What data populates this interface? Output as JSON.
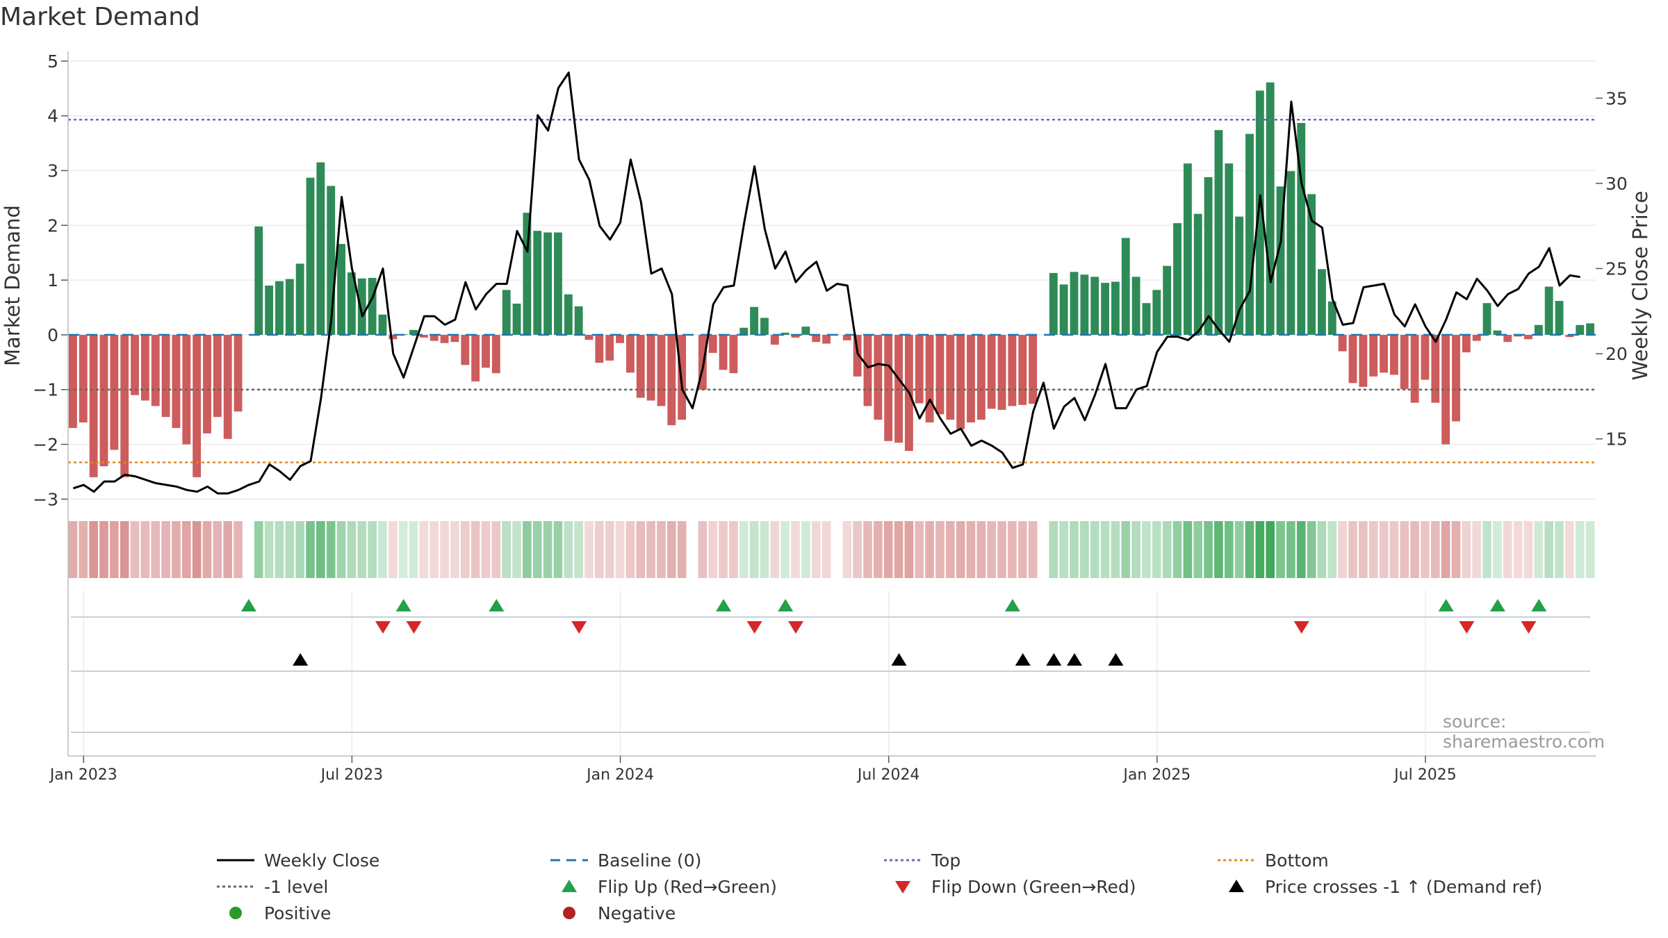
{
  "title": "Market Demand",
  "watermark": "source: sharemaestro.com",
  "chart_data": {
    "type": "bar+line",
    "title": "Market Demand",
    "ylabel_left": "Market Demand",
    "ylabel_right": "Weekly Close Price",
    "ylim_left": [
      -3.3,
      5.1
    ],
    "ylim_right": [
      10.5,
      37.5
    ],
    "yticks_left": [
      "5",
      "4",
      "3",
      "2",
      "1",
      "0",
      "−1",
      "−2",
      "−3"
    ],
    "yticks_right": [
      "35",
      "30",
      "25",
      "20",
      "15"
    ],
    "x_start_week_index": 0,
    "x_ticks": [
      {
        "label": "Jan 2023",
        "week": 1
      },
      {
        "label": "Jul 2023",
        "week": 27
      },
      {
        "label": "Jan 2024",
        "week": 53
      },
      {
        "label": "Jul 2024",
        "week": 79
      },
      {
        "label": "Jan 2025",
        "week": 105
      },
      {
        "label": "Jul 2025",
        "week": 131
      }
    ],
    "reference_lines": {
      "top": 3.93,
      "minus1": -1.0,
      "bottom": -2.33,
      "baseline": 0
    },
    "demand": [
      -1.7,
      -1.6,
      -2.6,
      -2.4,
      -2.1,
      -2.6,
      -1.1,
      -1.2,
      -1.3,
      -1.5,
      -1.7,
      -2.0,
      -2.6,
      -1.8,
      -1.5,
      -1.9,
      -1.4,
      0,
      1.98,
      0.9,
      0.98,
      1.02,
      1.3,
      2.87,
      3.15,
      2.72,
      1.66,
      1.14,
      1.03,
      1.04,
      0.37,
      -0.08,
      0.01,
      0.09,
      -0.05,
      -0.11,
      -0.15,
      -0.13,
      -0.55,
      -0.85,
      -0.6,
      -0.7,
      0.82,
      0.57,
      2.23,
      1.9,
      1.87,
      1.87,
      0.74,
      0.52,
      -0.09,
      -0.51,
      -0.47,
      -0.15,
      -0.69,
      -1.15,
      -1.2,
      -1.3,
      -1.65,
      -1.55,
      0,
      -1.0,
      -0.33,
      -0.64,
      -0.7,
      0.13,
      0.51,
      0.31,
      -0.18,
      0.04,
      -0.05,
      0.15,
      -0.13,
      -0.16,
      0,
      -0.1,
      -0.76,
      -1.3,
      -1.55,
      -1.94,
      -1.97,
      -2.12,
      -1.25,
      -1.6,
      -1.45,
      -1.55,
      -1.72,
      -1.6,
      -1.55,
      -1.35,
      -1.37,
      -1.3,
      -1.28,
      -1.26,
      0,
      1.13,
      0.92,
      1.15,
      1.1,
      1.06,
      0.95,
      0.97,
      1.77,
      1.06,
      0.58,
      0.82,
      1.26,
      2.04,
      3.13,
      2.21,
      2.88,
      3.74,
      3.13,
      2.16,
      3.67,
      4.46,
      4.61,
      2.71,
      2.99,
      3.87,
      2.57,
      1.2,
      0.61,
      -0.3,
      -0.88,
      -0.95,
      -0.76,
      -0.69,
      -0.73,
      -0.99,
      -1.24,
      -0.82,
      -1.24,
      -2.0,
      -1.58,
      -0.32,
      -0.11,
      0.58,
      0.08,
      -0.13,
      -0.03,
      -0.08,
      0.18,
      0.88,
      0.62,
      -0.04,
      0.18,
      0.21
    ],
    "close": [
      12.1,
      12.3,
      11.9,
      12.5,
      12.5,
      12.9,
      12.8,
      12.6,
      12.4,
      12.3,
      12.2,
      12.0,
      11.9,
      12.2,
      11.8,
      11.8,
      12.0,
      12.3,
      12.5,
      13.5,
      13.1,
      12.6,
      13.4,
      13.7,
      17.4,
      22.0,
      29.2,
      25.0,
      22.2,
      23.3,
      25.0,
      20.0,
      18.6,
      20.4,
      22.2,
      22.2,
      21.7,
      22.0,
      24.2,
      22.6,
      23.5,
      24.1,
      24.1,
      27.2,
      26.0,
      34.0,
      33.1,
      35.6,
      36.5,
      31.4,
      30.2,
      27.5,
      26.7,
      27.7,
      31.4,
      28.9,
      24.7,
      25.0,
      23.5,
      17.9,
      16.8,
      19.2,
      22.9,
      23.9,
      24.0,
      27.7,
      31.0,
      27.3,
      25.0,
      26.0,
      24.2,
      24.9,
      25.4,
      23.7,
      24.1,
      24.0,
      20.0,
      19.2,
      19.4,
      19.3,
      18.5,
      17.7,
      16.2,
      17.3,
      16.2,
      15.3,
      15.6,
      14.6,
      14.9,
      14.6,
      14.2,
      13.3,
      13.5,
      16.6,
      18.3,
      15.6,
      16.9,
      17.4,
      16.1,
      17.6,
      19.4,
      16.8,
      16.8,
      17.9,
      18.1,
      20.1,
      21.0,
      21.0,
      20.8,
      21.3,
      22.2,
      21.4,
      20.7,
      22.6,
      23.7,
      29.3,
      24.2,
      26.6,
      34.8,
      30.0,
      27.8,
      27.4,
      23.2,
      21.7,
      21.8,
      23.9,
      24.0,
      24.1,
      22.3,
      21.6,
      22.9,
      21.6,
      20.7,
      22.0,
      23.6,
      23.2,
      24.4,
      23.7,
      22.8,
      23.5,
      23.8,
      24.7,
      25.1,
      26.2,
      24.0,
      24.6,
      24.5
    ],
    "flip_up_weeks": [
      17,
      32,
      41,
      63,
      69,
      91,
      133,
      138,
      142
    ],
    "flip_down_weeks": [
      30,
      33,
      49,
      66,
      70,
      119,
      135,
      141
    ],
    "price_cross_weeks": [
      22,
      80,
      92,
      95,
      97,
      101
    ],
    "legend": [
      {
        "label": "Weekly Close",
        "symbol": "solid-line",
        "color": "#000000"
      },
      {
        "label": "Baseline (0)",
        "symbol": "dashed-line",
        "color": "#1f77b4"
      },
      {
        "label": "Top",
        "symbol": "dotted-line",
        "color": "#6a6ab8"
      },
      {
        "label": "Bottom",
        "symbol": "dotted-line",
        "color": "#e08a1c"
      },
      {
        "label": "-1 level",
        "symbol": "dotted-line",
        "color": "#666666"
      },
      {
        "label": "Flip Up (Red→Green)",
        "symbol": "triangle-up",
        "color": "#22a04a"
      },
      {
        "label": "Flip Down (Green→Red)",
        "symbol": "triangle-down",
        "color": "#d62728"
      },
      {
        "label": "Price crosses -1 ↑ (Demand ref)",
        "symbol": "triangle-up",
        "color": "#000000"
      },
      {
        "label": "Positive",
        "symbol": "circle",
        "color": "#2a9a2a"
      },
      {
        "label": "Negative",
        "symbol": "circle",
        "color": "#b22222"
      }
    ],
    "colors": {
      "positive_bar": "#2e8b57",
      "negative_bar": "#cd5c5c",
      "heat_positive": "#3ea85a",
      "heat_negative": "#c65c5c",
      "close_line": "#000000",
      "grid": "#e5e5e5"
    }
  }
}
